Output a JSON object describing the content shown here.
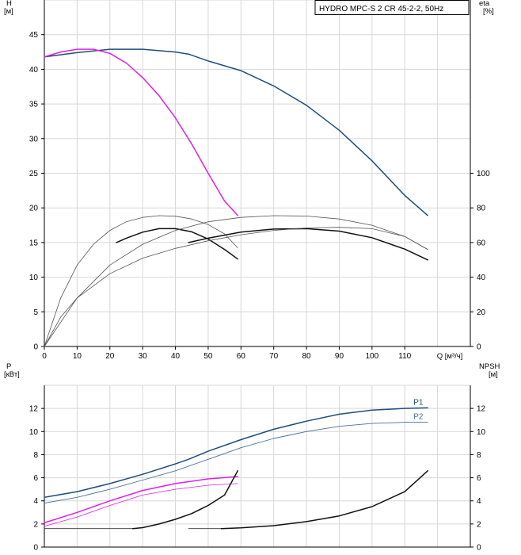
{
  "chart_data": [
    {
      "type": "line",
      "legend": "HYDRO MPC-S 2 CR 45-2-2, 50Hz",
      "left_axis": {
        "label_line1": "H",
        "label_line2": "[м]",
        "range": [
          0,
          50
        ],
        "ticks": [
          0,
          5,
          10,
          15,
          20,
          25,
          30,
          35,
          40,
          45
        ]
      },
      "right_axis": {
        "label_line1": "eta",
        "label_line2": "[%]",
        "range": [
          0,
          200
        ],
        "ticks": [
          0,
          20,
          40,
          60,
          80,
          100
        ]
      },
      "x_axis": {
        "label": "Q [м³/ч]",
        "range": [
          0,
          130
        ],
        "ticks": [
          0,
          10,
          20,
          30,
          40,
          50,
          60,
          70,
          80,
          90,
          100,
          110
        ]
      },
      "grid": true,
      "series": [
        {
          "role": "head-two-pumps",
          "axis": "left",
          "color": "#1f4e79",
          "width": 1.5,
          "points": [
            [
              0,
              41.8
            ],
            [
              10,
              42.4
            ],
            [
              20,
              42.9
            ],
            [
              30,
              42.9
            ],
            [
              40,
              42.5
            ],
            [
              44,
              42.2
            ],
            [
              50,
              41.2
            ],
            [
              60,
              39.8
            ],
            [
              70,
              37.6
            ],
            [
              80,
              34.8
            ],
            [
              90,
              31.2
            ],
            [
              100,
              26.8
            ],
            [
              110,
              21.8
            ],
            [
              117,
              18.9
            ]
          ]
        },
        {
          "role": "head-one-pump",
          "axis": "left",
          "color": "#e020e0",
          "width": 1.5,
          "points": [
            [
              0,
              41.8
            ],
            [
              5,
              42.5
            ],
            [
              10,
              42.9
            ],
            [
              15,
              42.9
            ],
            [
              20,
              42.3
            ],
            [
              25,
              40.9
            ],
            [
              30,
              38.8
            ],
            [
              35,
              36.2
            ],
            [
              40,
              33.0
            ],
            [
              45,
              29.2
            ],
            [
              50,
              25.0
            ],
            [
              55,
              21.0
            ],
            [
              59,
              18.9
            ]
          ]
        },
        {
          "role": "eta-one-pump-thin",
          "axis": "right",
          "color": "#555555",
          "width": 0.8,
          "points": [
            [
              0,
              0
            ],
            [
              5,
              28
            ],
            [
              10,
              47
            ],
            [
              15,
              59
            ],
            [
              20,
              67
            ],
            [
              25,
              72
            ],
            [
              30,
              74.5
            ],
            [
              35,
              75.5
            ],
            [
              40,
              75.2
            ],
            [
              45,
              73.6
            ],
            [
              50,
              70.4
            ],
            [
              55,
              65
            ],
            [
              59,
              57
            ]
          ]
        },
        {
          "role": "eta-one-pump-bold",
          "axis": "right",
          "color": "#111111",
          "width": 1.5,
          "points": [
            [
              22,
              60
            ],
            [
              25,
              62.5
            ],
            [
              30,
              66
            ],
            [
              35,
              68
            ],
            [
              40,
              68
            ],
            [
              45,
              66.2
            ],
            [
              50,
              62
            ],
            [
              55,
              56
            ],
            [
              59,
              50.5
            ]
          ]
        },
        {
          "role": "eta-two-pumps-thin",
          "axis": "right",
          "color": "#555555",
          "width": 0.8,
          "points": [
            [
              0,
              0
            ],
            [
              10,
              28
            ],
            [
              20,
              47
            ],
            [
              30,
              59
            ],
            [
              40,
              67
            ],
            [
              50,
              72
            ],
            [
              60,
              74.5
            ],
            [
              70,
              75.5
            ],
            [
              80,
              75.3
            ],
            [
              90,
              73.6
            ],
            [
              100,
              70
            ],
            [
              110,
              63.5
            ],
            [
              117,
              56
            ]
          ]
        },
        {
          "role": "eta-two-pumps-bold",
          "axis": "right",
          "color": "#111111",
          "width": 1.5,
          "points": [
            [
              44,
              60
            ],
            [
              50,
              62.5
            ],
            [
              60,
              66
            ],
            [
              70,
              67.8
            ],
            [
              80,
              68
            ],
            [
              90,
              66.6
            ],
            [
              100,
              62.8
            ],
            [
              110,
              56.2
            ],
            [
              117,
              50
            ]
          ]
        },
        {
          "role": "eta-lower-thin",
          "axis": "right",
          "color": "#555555",
          "width": 0.8,
          "points": [
            [
              0,
              0
            ],
            [
              5,
              17
            ],
            [
              10,
              28
            ],
            [
              20,
              42
            ],
            [
              30,
              51
            ],
            [
              40,
              56.6
            ],
            [
              50,
              61
            ],
            [
              60,
              64.5
            ],
            [
              70,
              67
            ],
            [
              80,
              68.4
            ],
            [
              90,
              68.8
            ],
            [
              100,
              68
            ],
            [
              110,
              63.5
            ],
            [
              117,
              56
            ]
          ]
        }
      ]
    },
    {
      "type": "line",
      "left_axis": {
        "label_line1": "P",
        "label_line2": "[кВт]",
        "range": [
          0,
          14
        ],
        "ticks": [
          0,
          2,
          4,
          6,
          8,
          10,
          12
        ]
      },
      "right_axis": {
        "label_line1": "NPSH",
        "label_line2": "[м]",
        "range": [
          0,
          14
        ],
        "ticks": [
          0,
          2,
          4,
          6,
          8,
          10,
          12
        ]
      },
      "x_range": [
        0,
        130
      ],
      "grid": true,
      "series": [
        {
          "name": "P1",
          "axis": "left",
          "color": "#1f4e79",
          "width": 1.5,
          "label_at": 117,
          "points": [
            [
              0,
              4.3
            ],
            [
              10,
              4.8
            ],
            [
              20,
              5.5
            ],
            [
              30,
              6.3
            ],
            [
              40,
              7.2
            ],
            [
              44,
              7.6
            ],
            [
              50,
              8.3
            ],
            [
              60,
              9.3
            ],
            [
              70,
              10.2
            ],
            [
              80,
              10.9
            ],
            [
              90,
              11.5
            ],
            [
              100,
              11.85
            ],
            [
              110,
              12.0
            ],
            [
              117,
              12.05
            ]
          ]
        },
        {
          "name": "P2",
          "axis": "left",
          "color": "#4a6f9a",
          "width": 0.9,
          "label_at": 117,
          "points": [
            [
              0,
              3.8
            ],
            [
              10,
              4.3
            ],
            [
              20,
              5.0
            ],
            [
              30,
              5.8
            ],
            [
              40,
              6.6
            ],
            [
              50,
              7.6
            ],
            [
              60,
              8.6
            ],
            [
              70,
              9.4
            ],
            [
              80,
              10.0
            ],
            [
              90,
              10.45
            ],
            [
              100,
              10.7
            ],
            [
              110,
              10.8
            ],
            [
              117,
              10.8
            ]
          ]
        },
        {
          "role": "P1-one-pump",
          "axis": "left",
          "color": "#e020e0",
          "width": 1.5,
          "points": [
            [
              0,
              2.1
            ],
            [
              10,
              3.0
            ],
            [
              20,
              4.0
            ],
            [
              30,
              4.9
            ],
            [
              40,
              5.5
            ],
            [
              50,
              5.9
            ],
            [
              59,
              6.1
            ]
          ]
        },
        {
          "role": "P2-one-pump",
          "axis": "left",
          "color": "#e020e0",
          "width": 0.8,
          "points": [
            [
              0,
              1.8
            ],
            [
              10,
              2.6
            ],
            [
              20,
              3.6
            ],
            [
              30,
              4.5
            ],
            [
              40,
              5.0
            ],
            [
              50,
              5.35
            ],
            [
              59,
              5.5
            ]
          ]
        },
        {
          "role": "NPSH-one-pump-thin",
          "axis": "right",
          "color": "#333333",
          "width": 0.8,
          "points": [
            [
              0,
              1.6
            ],
            [
              10,
              1.6
            ],
            [
              20,
              1.6
            ],
            [
              27,
              1.6
            ]
          ]
        },
        {
          "role": "NPSH-one-pump",
          "axis": "right",
          "color": "#111111",
          "width": 1.5,
          "points": [
            [
              27,
              1.6
            ],
            [
              30,
              1.68
            ],
            [
              35,
              2.0
            ],
            [
              40,
              2.4
            ],
            [
              45,
              2.9
            ],
            [
              50,
              3.6
            ],
            [
              55,
              4.5
            ],
            [
              59,
              6.6
            ]
          ]
        },
        {
          "role": "NPSH-two-pumps-thin",
          "axis": "right",
          "color": "#333333",
          "width": 0.8,
          "points": [
            [
              44,
              1.6
            ],
            [
              54,
              1.6
            ]
          ]
        },
        {
          "role": "NPSH-two-pumps",
          "axis": "right",
          "color": "#111111",
          "width": 1.5,
          "points": [
            [
              54,
              1.6
            ],
            [
              60,
              1.66
            ],
            [
              70,
              1.85
            ],
            [
              80,
              2.2
            ],
            [
              90,
              2.7
            ],
            [
              100,
              3.5
            ],
            [
              110,
              4.8
            ],
            [
              117,
              6.6
            ]
          ]
        }
      ]
    }
  ]
}
